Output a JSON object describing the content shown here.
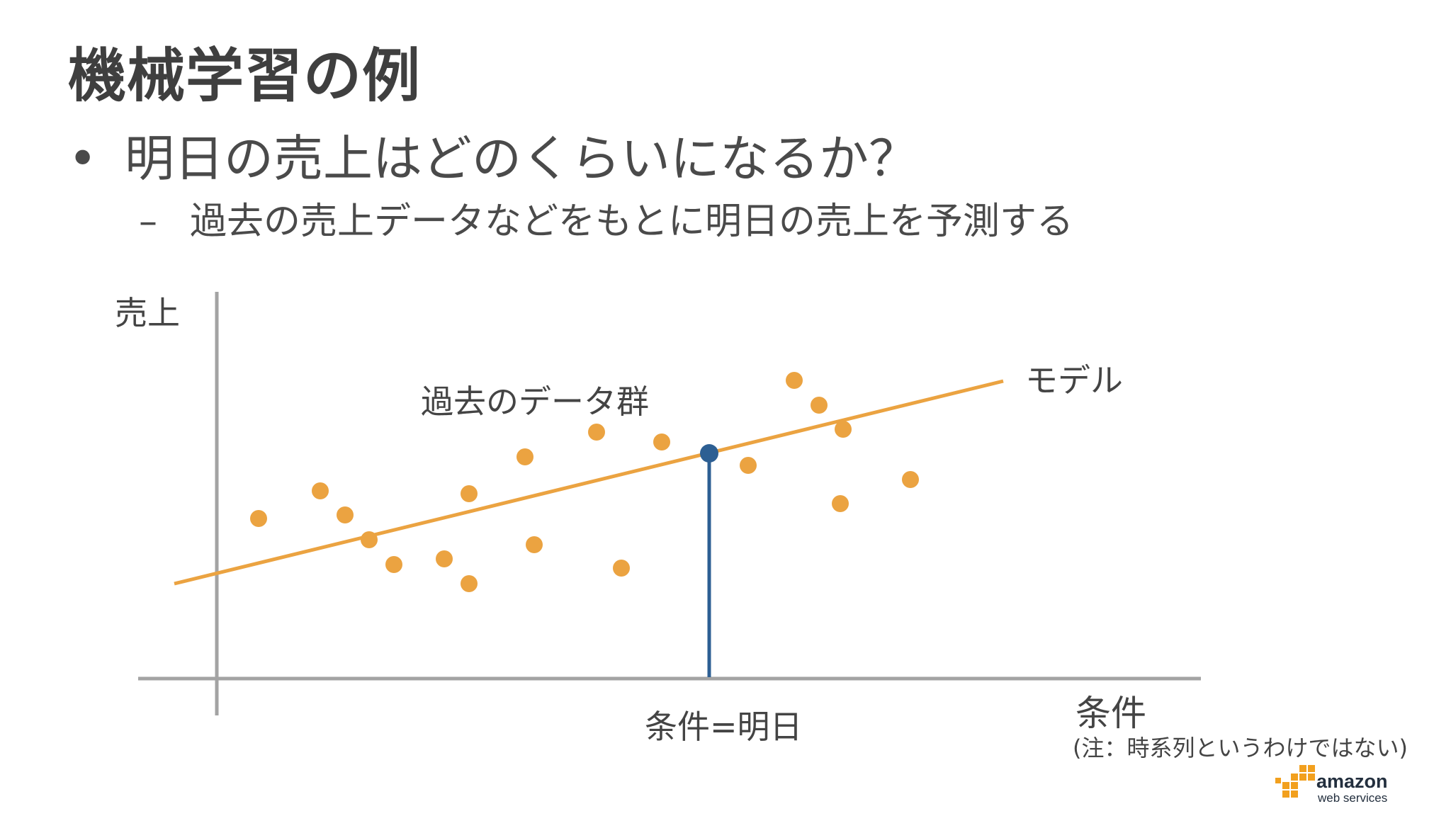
{
  "slide": {
    "title": "機械学習の例",
    "bullet": "明日の売上はどのくらいになるか？",
    "sub_bullet": "過去の売上データなどをもとに明日の売上を予測する",
    "bullet_marker": "•",
    "sub_marker": "–"
  },
  "diagram": {
    "y_axis_label": "売上",
    "x_axis_label": "条件",
    "x_axis_note": "(注：時系列というわけではない)",
    "data_group_label": "過去のデータ群",
    "model_label": "モデル",
    "condition_label": "条件=明日",
    "colors": {
      "points": "#eba341",
      "model_line": "#eba341",
      "prediction": "#2d5f93",
      "axes": "#a3a3a3"
    }
  },
  "logo": {
    "brand": "amazon",
    "tagline": "web services",
    "color_cube": "#f2a01e"
  }
}
